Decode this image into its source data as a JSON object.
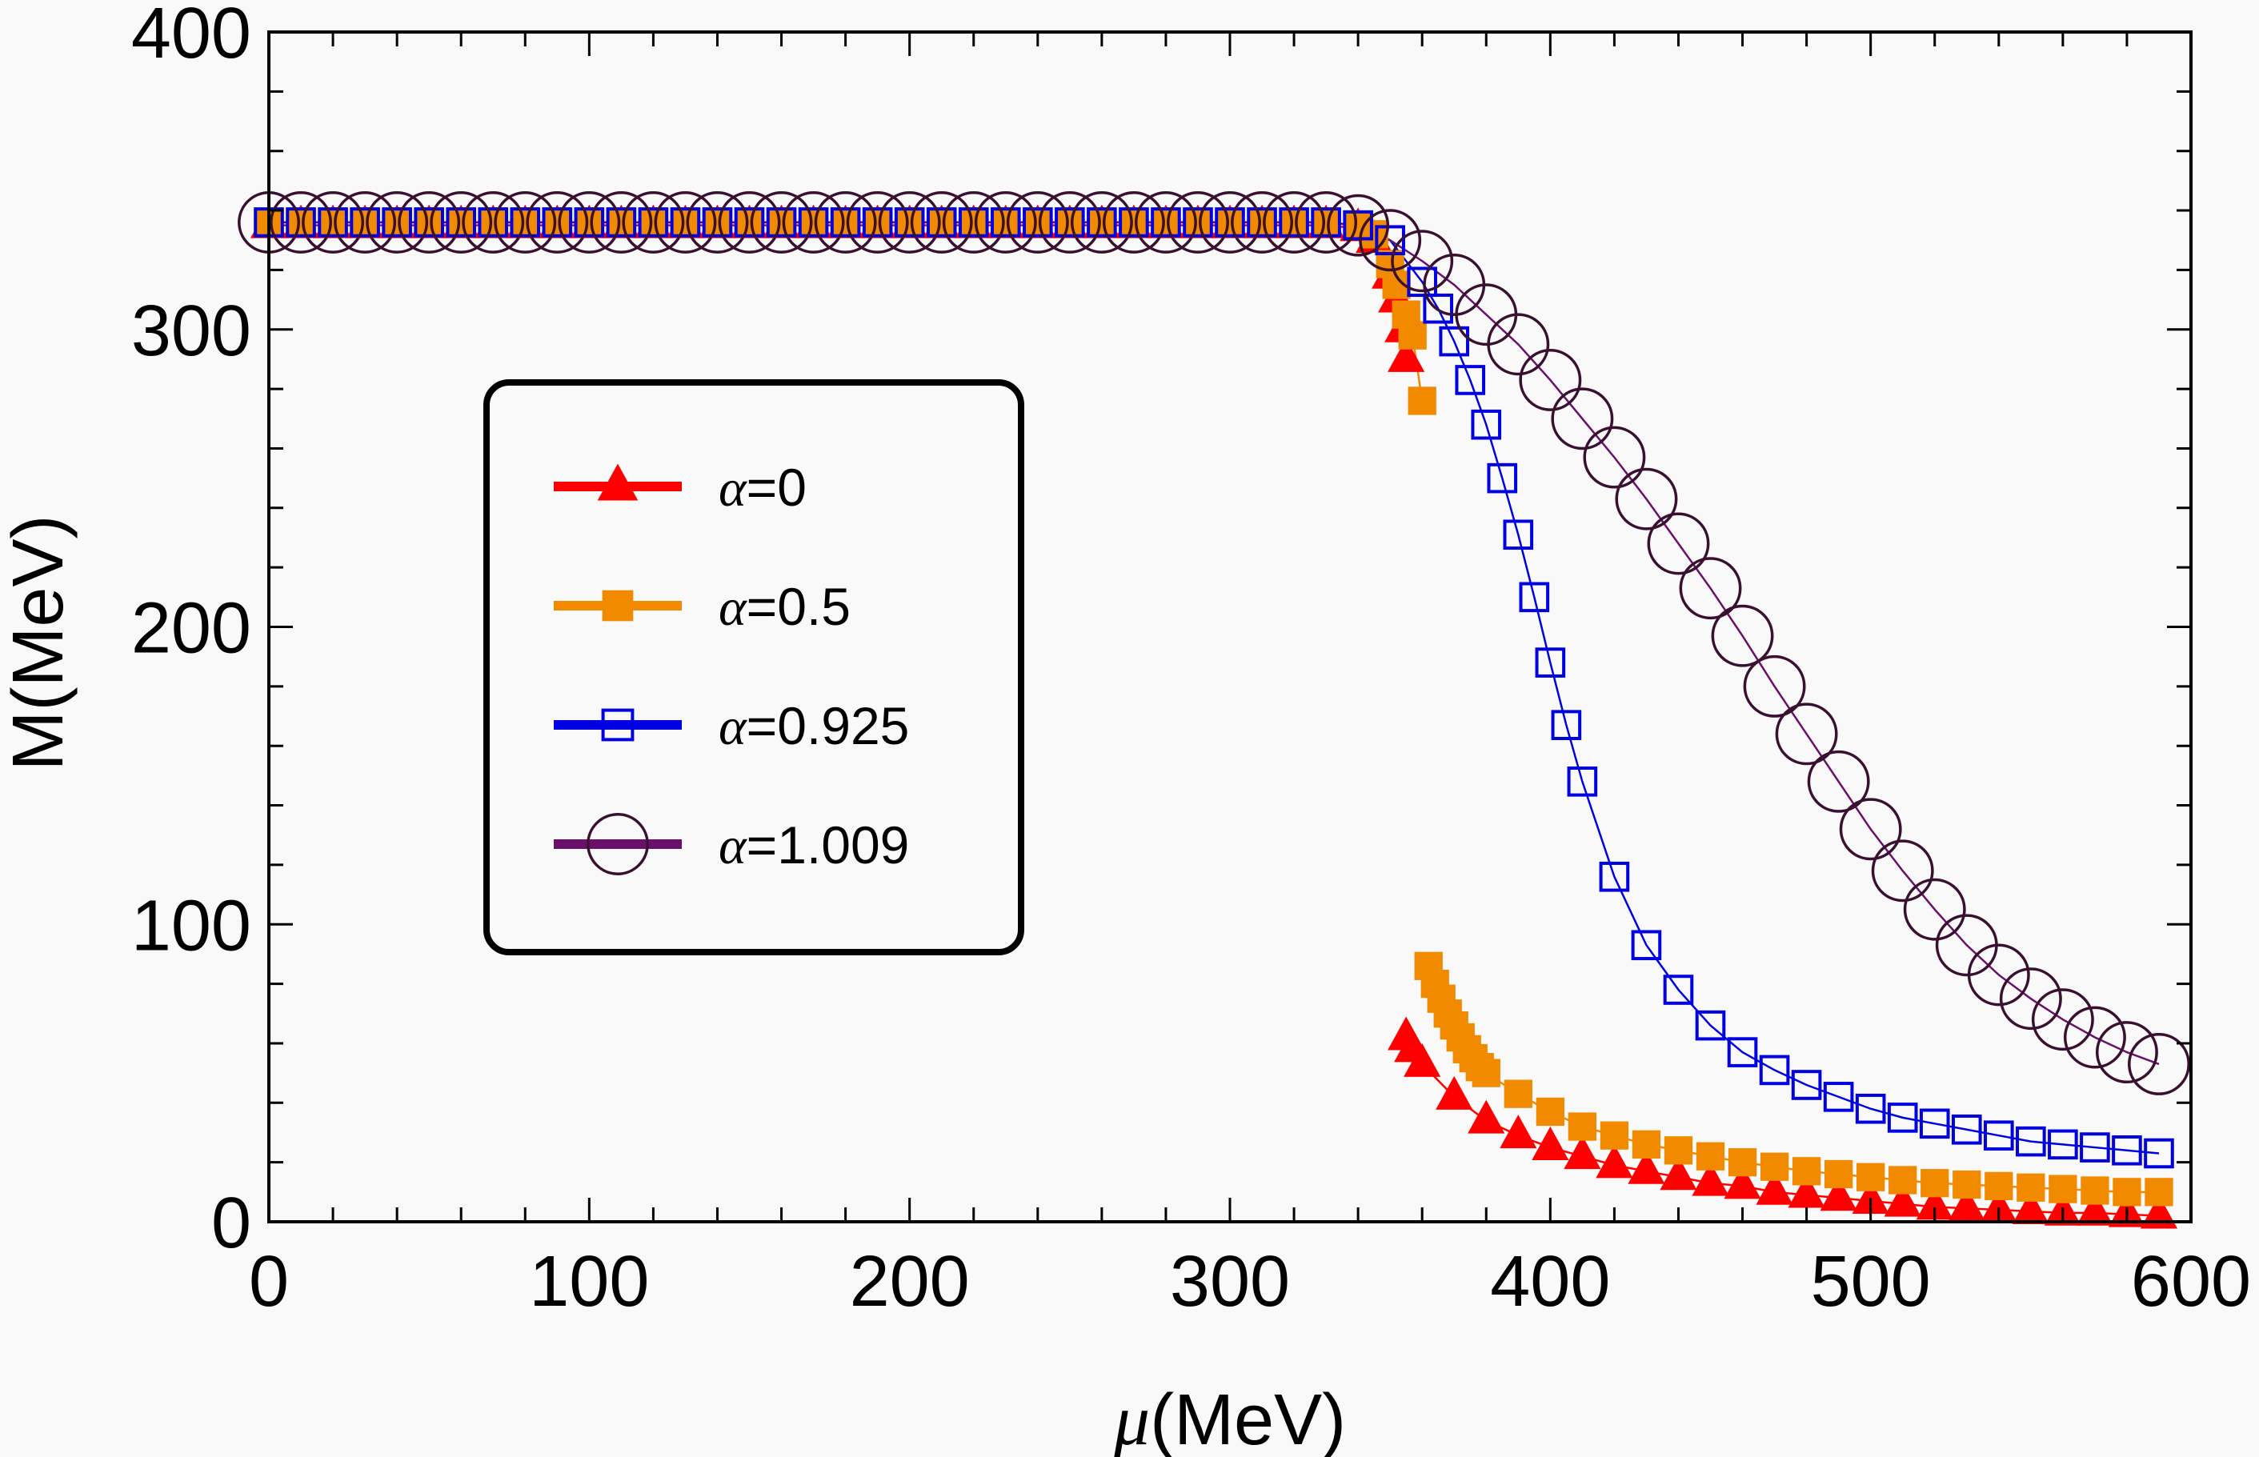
{
  "chart_data": {
    "type": "line",
    "title": "",
    "xlabel": "μ(MeV)",
    "xlabel_symbol": "μ",
    "xlabel_unit": "(MeV)",
    "ylabel": "M(MeV)",
    "xlim": [
      0,
      600
    ],
    "ylim": [
      0,
      400
    ],
    "x_ticks": [
      0,
      100,
      200,
      300,
      400,
      500,
      600
    ],
    "y_ticks": [
      0,
      100,
      200,
      300,
      400
    ],
    "x_minor_step": 20,
    "y_minor_step": 20,
    "grid": false,
    "legend_position": "center-left",
    "series": [
      {
        "name": "α=0",
        "label_symbol": "α",
        "label_value": "=0",
        "color": "#ff0000",
        "marker": "filled-triangle",
        "segments": [
          {
            "x": [
              0,
              10,
              20,
              30,
              40,
              50,
              60,
              70,
              80,
              90,
              100,
              110,
              120,
              130,
              140,
              150,
              160,
              170,
              180,
              190,
              200,
              210,
              220,
              230,
              240,
              250,
              260,
              270,
              280,
              290,
              300,
              310,
              320,
              330,
              340,
              345,
              350,
              352,
              354,
              355
            ],
            "y": [
              335,
              335,
              335,
              335,
              335,
              335,
              335,
              335,
              335,
              335,
              335,
              335,
              335,
              335,
              335,
              335,
              335,
              335,
              335,
              335,
              335,
              335,
              335,
              335,
              335,
              335,
              335,
              335,
              335,
              335,
              335,
              335,
              335,
              335,
              334,
              330,
              318,
              310,
              300,
              290
            ]
          },
          {
            "x": [
              355,
              357,
              360,
              370,
              380,
              390,
              400,
              410,
              420,
              430,
              440,
              450,
              460,
              470,
              480,
              490,
              500,
              510,
              520,
              530,
              540,
              550,
              560,
              570,
              580,
              590
            ],
            "y": [
              62,
              58,
              53,
              42,
              34,
              29,
              25,
              22,
              19,
              17,
              15,
              13,
              12,
              10,
              9,
              8,
              7,
              6,
              5,
              4.5,
              4,
              3.5,
              3,
              3,
              2.5,
              2
            ]
          }
        ]
      },
      {
        "name": "α=0.5",
        "label_symbol": "α",
        "label_value": "=0.5",
        "color": "#f28a00",
        "marker": "filled-square",
        "segments": [
          {
            "x": [
              0,
              10,
              20,
              30,
              40,
              50,
              60,
              70,
              80,
              90,
              100,
              110,
              120,
              130,
              140,
              150,
              160,
              170,
              180,
              190,
              200,
              210,
              220,
              230,
              240,
              250,
              260,
              270,
              280,
              290,
              300,
              310,
              320,
              330,
              340,
              345,
              350,
              352,
              355,
              357,
              360
            ],
            "y": [
              336,
              336,
              336,
              336,
              336,
              336,
              336,
              336,
              336,
              336,
              336,
              336,
              336,
              336,
              336,
              336,
              336,
              336,
              336,
              336,
              336,
              336,
              336,
              336,
              336,
              336,
              336,
              336,
              336,
              336,
              336,
              336,
              336,
              336,
              335,
              332,
              322,
              315,
              305,
              298,
              276
            ]
          },
          {
            "x": [
              362,
              364,
              366,
              368,
              370,
              372,
              374,
              376,
              378,
              380,
              390,
              400,
              410,
              420,
              430,
              440,
              450,
              460,
              470,
              480,
              490,
              500,
              510,
              520,
              530,
              540,
              550,
              560,
              570,
              580,
              590
            ],
            "y": [
              86,
              80,
              75,
              70,
              66,
              62,
              58,
              55,
              52,
              50,
              43,
              37,
              32,
              29,
              26,
              24,
              22,
              20,
              18.5,
              17,
              16,
              15,
              14,
              13,
              12.5,
              12,
              11.5,
              11,
              10.5,
              10,
              10
            ]
          }
        ]
      },
      {
        "name": "α=0.925",
        "label_symbol": "α",
        "label_value": "=0.925",
        "color": "#0000e0",
        "marker": "open-square",
        "segments": [
          {
            "x": [
              0,
              10,
              20,
              30,
              40,
              50,
              60,
              70,
              80,
              90,
              100,
              110,
              120,
              130,
              140,
              150,
              160,
              170,
              180,
              190,
              200,
              210,
              220,
              230,
              240,
              250,
              260,
              270,
              280,
              290,
              300,
              310,
              320,
              330,
              340,
              350,
              360,
              365,
              370,
              375,
              380,
              385,
              390,
              395,
              400,
              405,
              410,
              420,
              430,
              440,
              450,
              460,
              470,
              480,
              490,
              500,
              510,
              520,
              530,
              540,
              550,
              560,
              570,
              580,
              590
            ],
            "y": [
              336,
              336,
              336,
              336,
              336,
              336,
              336,
              336,
              336,
              336,
              336,
              336,
              336,
              336,
              336,
              336,
              336,
              336,
              336,
              336,
              336,
              336,
              336,
              336,
              336,
              336,
              336,
              336,
              336,
              336,
              336,
              336,
              336,
              336,
              335,
              330,
              316,
              307,
              296,
              283,
              268,
              250,
              231,
              210,
              188,
              167,
              148,
              116,
              93,
              78,
              66,
              57,
              51,
              46,
              42,
              38,
              35,
              33,
              31,
              29,
              27,
              26,
              25,
              24,
              23
            ]
          }
        ]
      },
      {
        "name": "α=1.009",
        "label_symbol": "α",
        "label_value": "=1.009",
        "color": "#6a0f6a",
        "marker_color": "#3a1030",
        "marker": "open-circle",
        "segments": [
          {
            "x": [
              0,
              10,
              20,
              30,
              40,
              50,
              60,
              70,
              80,
              90,
              100,
              110,
              120,
              130,
              140,
              150,
              160,
              170,
              180,
              190,
              200,
              210,
              220,
              230,
              240,
              250,
              260,
              270,
              280,
              290,
              300,
              310,
              320,
              330,
              340,
              350,
              360,
              370,
              380,
              390,
              400,
              410,
              420,
              430,
              440,
              450,
              460,
              470,
              480,
              490,
              500,
              510,
              520,
              530,
              540,
              550,
              560,
              570,
              580,
              590
            ],
            "y": [
              336,
              336,
              336,
              336,
              336,
              336,
              336,
              336,
              336,
              336,
              336,
              336,
              336,
              336,
              336,
              336,
              336,
              336,
              336,
              336,
              336,
              336,
              336,
              336,
              336,
              336,
              336,
              336,
              336,
              336,
              336,
              336,
              336,
              336,
              335,
              330,
              323,
              315,
              305,
              295,
              283,
              270,
              257,
              243,
              228,
              213,
              197,
              180,
              164,
              148,
              132,
              118,
              105,
              93,
              83,
              75,
              68,
              62,
              57,
              53
            ]
          }
        ]
      }
    ]
  }
}
